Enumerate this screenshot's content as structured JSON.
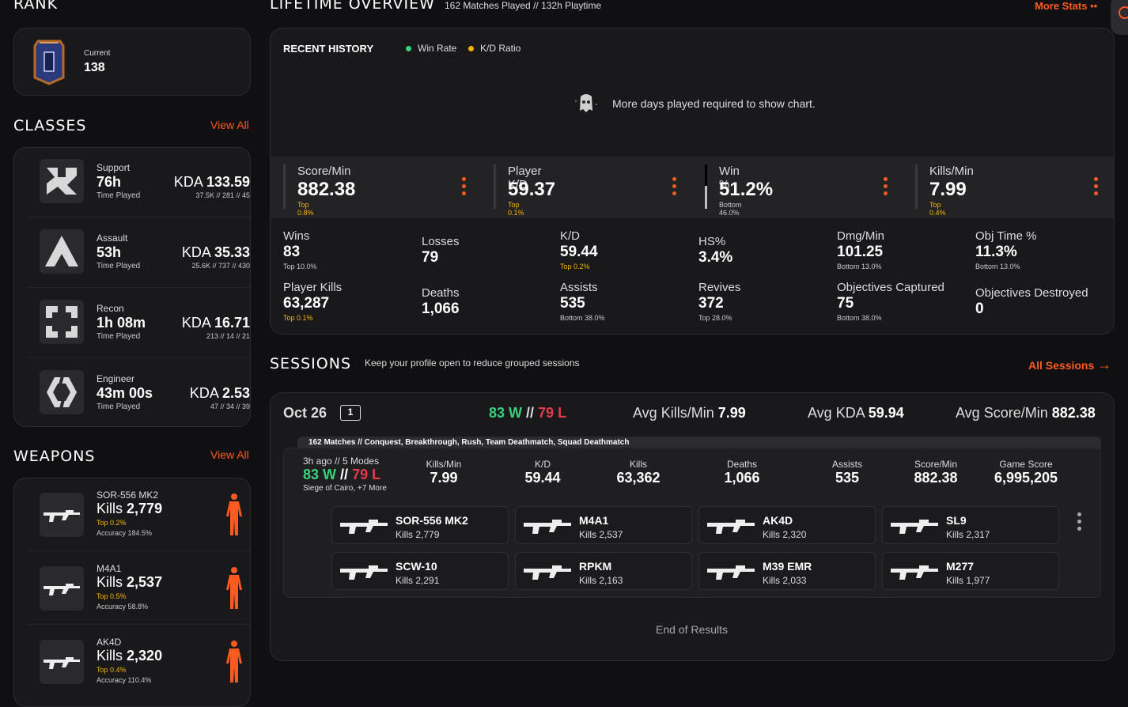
{
  "colors": {
    "accent": "#ff5a1f",
    "win": "#37d27a",
    "loss": "#e23b4a",
    "top": "#f5b400",
    "bottom": "#c8c8cc",
    "winrate_dot": "#37d27a",
    "kd_dot": "#f5b400"
  },
  "rank": {
    "title": "RANK",
    "current_label": "Current",
    "current_value": "138"
  },
  "classes": {
    "title": "CLASSES",
    "view_all": "View All",
    "items": [
      {
        "name": "Support",
        "time": "76h",
        "time_label": "Time Played",
        "kda_label": "KDA",
        "kda": "133.59",
        "breakdown": "37.5K // 281 // 45",
        "icon": "support-class-icon"
      },
      {
        "name": "Assault",
        "time": "53h",
        "time_label": "Time Played",
        "kda_label": "KDA",
        "kda": "35.33",
        "breakdown": "25.6K // 737 // 430",
        "icon": "assault-class-icon"
      },
      {
        "name": "Recon",
        "time": "1h 08m",
        "time_label": "Time Played",
        "kda_label": "KDA",
        "kda": "16.71",
        "breakdown": "213 // 14 // 21",
        "icon": "recon-class-icon"
      },
      {
        "name": "Engineer",
        "time": "43m 00s",
        "time_label": "Time Played",
        "kda_label": "KDA",
        "kda": "2.53",
        "breakdown": "47 // 34 // 39",
        "icon": "engineer-class-icon"
      }
    ]
  },
  "weapons": {
    "title": "WEAPONS",
    "view_all": "View All",
    "items": [
      {
        "name": "SOR-556 MK2",
        "kills_label": "Kills",
        "kills": "2,779",
        "top": "Top 0.2%",
        "accuracy": "Accuracy 184.5%"
      },
      {
        "name": "M4A1",
        "kills_label": "Kills",
        "kills": "2,537",
        "top": "Top 0.5%",
        "accuracy": "Accuracy 58.8%"
      },
      {
        "name": "AK4D",
        "kills_label": "Kills",
        "kills": "2,320",
        "top": "Top 0.4%",
        "accuracy": "Accuracy 110.4%"
      }
    ]
  },
  "overview": {
    "title": "LIFETIME OVERVIEW",
    "subtitle": "162 Matches Played // 132h Playtime",
    "more_stats": "More Stats",
    "recent_history": "RECENT HISTORY",
    "legend_winrate": "Win Rate",
    "legend_kd": "K/D Ratio",
    "empty_msg": "More days played required to show chart.",
    "featured": [
      {
        "label": "Score/Min",
        "value": "882.38",
        "sub": "Top 0.8%",
        "tier": "top"
      },
      {
        "label": "Player K/D",
        "value": "59.37",
        "sub": "Top 0.1%",
        "tier": "top"
      },
      {
        "label": "Win %",
        "value": "51.2%",
        "sub": "Bottom 46.0%",
        "tier": "bottom",
        "progress": 0.512
      },
      {
        "label": "Kills/Min",
        "value": "7.99",
        "sub": "Top 0.4%",
        "tier": "top"
      }
    ],
    "stats": [
      {
        "label": "Wins",
        "value": "83",
        "sub": "Top 10.0%",
        "tier": "top"
      },
      {
        "label": "Losses",
        "value": "79",
        "sub": "",
        "tier": ""
      },
      {
        "label": "K/D",
        "value": "59.44",
        "sub": "Top 0.2%",
        "tier": "top"
      },
      {
        "label": "HS%",
        "value": "3.4%",
        "sub": "",
        "tier": ""
      },
      {
        "label": "Dmg/Min",
        "value": "101.25",
        "sub": "Bottom 13.0%",
        "tier": "bottom"
      },
      {
        "label": "Obj Time %",
        "value": "11.3%",
        "sub": "Bottom 13.0%",
        "tier": "bottom"
      },
      {
        "label": "Player Kills",
        "value": "63,287",
        "sub": "Top 0.1%",
        "tier": "top"
      },
      {
        "label": "Deaths",
        "value": "1,066",
        "sub": "",
        "tier": ""
      },
      {
        "label": "Assists",
        "value": "535",
        "sub": "Bottom 38.0%",
        "tier": "bottom"
      },
      {
        "label": "Revives",
        "value": "372",
        "sub": "Top 28.0%",
        "tier": "top"
      },
      {
        "label": "Objectives Captured",
        "value": "75",
        "sub": "Bottom 38.0%",
        "tier": "bottom"
      },
      {
        "label": "Objectives Destroyed",
        "value": "0",
        "sub": "",
        "tier": ""
      }
    ]
  },
  "sessions": {
    "title": "SESSIONS",
    "note": "Keep your profile open to reduce grouped sessions",
    "all_sessions": "All Sessions",
    "day": {
      "date": "Oct 26",
      "count": "1",
      "wins": "83 W",
      "sep": "//",
      "losses": "79 L",
      "avg_kpm_label": "Avg Kills/Min",
      "avg_kpm": "7.99",
      "avg_kda_label": "Avg KDA",
      "avg_kda": "59.94",
      "avg_spm_label": "Avg Score/Min",
      "avg_spm": "882.38"
    },
    "group_label": "162 Matches // Conquest, Breakthrough, Rush, Team Deathmatch, Squad Deathmatch",
    "session": {
      "ago": "3h ago // 5 Modes",
      "wins": "83 W",
      "sep": "//",
      "losses": "79 L",
      "maps": "Siege of Cairo, +7 More",
      "cols": [
        {
          "h": "Kills/Min",
          "v": "7.99"
        },
        {
          "h": "K/D",
          "v": "59.44"
        },
        {
          "h": "Kills",
          "v": "63,362"
        },
        {
          "h": "Deaths",
          "v": "1,066"
        },
        {
          "h": "Assists",
          "v": "535"
        },
        {
          "h": "Score/Min",
          "v": "882.38"
        },
        {
          "h": "Game Score",
          "v": "6,995,205"
        }
      ]
    },
    "weapons": [
      {
        "name": "SOR-556 MK2",
        "kills": "Kills 2,779"
      },
      {
        "name": "M4A1",
        "kills": "Kills 2,537"
      },
      {
        "name": "AK4D",
        "kills": "Kills 2,320"
      },
      {
        "name": "SL9",
        "kills": "Kills 2,317"
      },
      {
        "name": "SCW-10",
        "kills": "Kills 2,291"
      },
      {
        "name": "RPKM",
        "kills": "Kills 2,163"
      },
      {
        "name": "M39 EMR",
        "kills": "Kills 2,033"
      },
      {
        "name": "M277",
        "kills": "Kills 1,977"
      }
    ],
    "end": "End of Results"
  }
}
